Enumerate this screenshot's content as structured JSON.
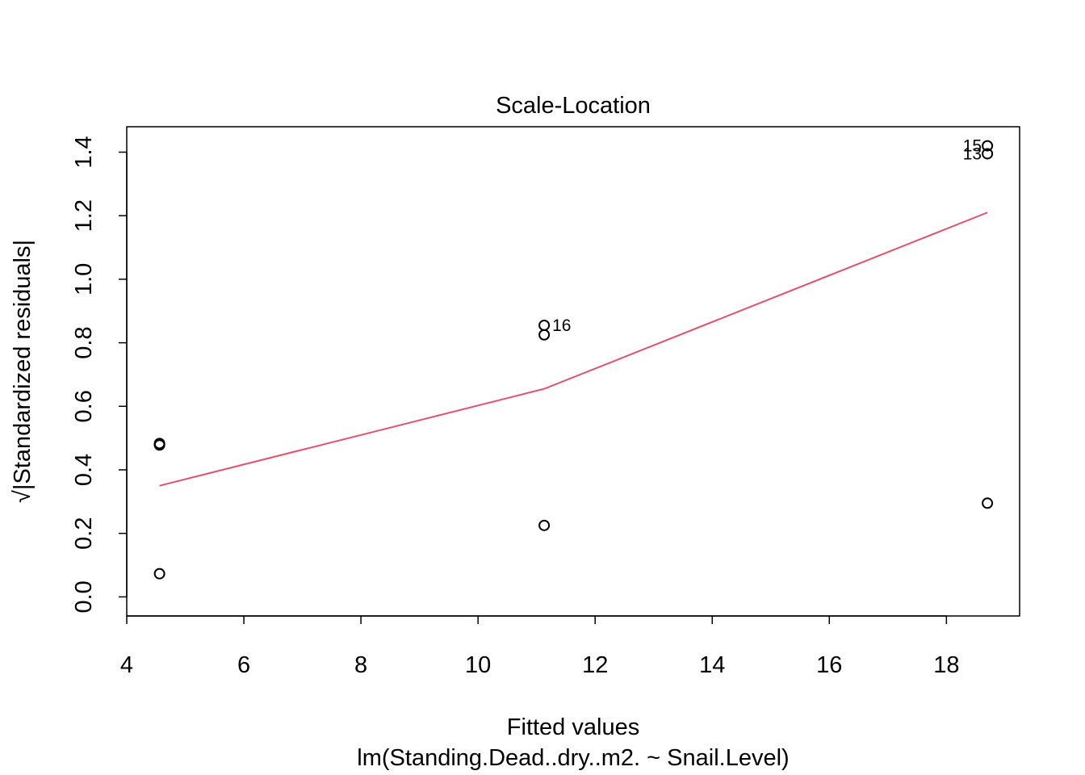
{
  "chart_data": {
    "type": "scatter",
    "title": "Scale-Location",
    "xlabel": "Fitted values",
    "subtitle": "lm(Standing.Dead..dry..m2. ~ Snail.Level)",
    "ylabel_prefix": "√",
    "ylabel": "|Standardized residuals|",
    "xlim": [
      4,
      19.25
    ],
    "ylim": [
      -0.06,
      1.48
    ],
    "x_ticks": [
      "4",
      "6",
      "8",
      "10",
      "12",
      "14",
      "16",
      "18"
    ],
    "y_ticks": [
      "0.0",
      "0.2",
      "0.4",
      "0.6",
      "0.8",
      "1.0",
      "1.2",
      "1.4"
    ],
    "points": [
      {
        "x": 4.56,
        "y": 0.48
      },
      {
        "x": 4.56,
        "y": 0.478
      },
      {
        "x": 4.56,
        "y": 0.483
      },
      {
        "x": 4.56,
        "y": 0.073
      },
      {
        "x": 11.13,
        "y": 0.855
      },
      {
        "x": 11.13,
        "y": 0.825
      },
      {
        "x": 11.13,
        "y": 0.225
      },
      {
        "x": 18.7,
        "y": 1.42
      },
      {
        "x": 18.7,
        "y": 1.395
      },
      {
        "x": 18.7,
        "y": 0.295
      }
    ],
    "point_labels": [
      {
        "text": "16",
        "x": 11.13,
        "y": 0.855,
        "side": "right"
      },
      {
        "text": "15",
        "x": 18.7,
        "y": 1.42,
        "side": "left"
      },
      {
        "text": "13",
        "x": 18.7,
        "y": 1.395,
        "side": "left"
      }
    ],
    "smooth_line": {
      "color": "#DF536B",
      "x": [
        4.56,
        11.13,
        18.7
      ],
      "y": [
        0.35,
        0.655,
        1.21
      ]
    },
    "grid": false,
    "legend": "none"
  }
}
